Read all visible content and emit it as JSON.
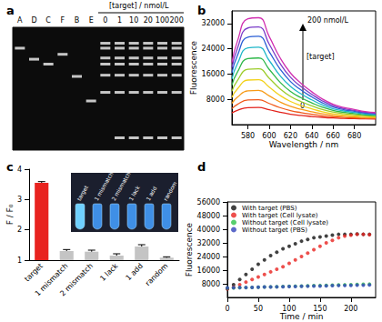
{
  "chart_data": [
    {
      "type": "gel",
      "title": "a",
      "categories": [
        "A",
        "D",
        "C",
        "F",
        "B",
        "E",
        "0",
        "1",
        "10",
        "20",
        "100",
        "200"
      ],
      "annotation": "[target] / nmol/L",
      "bands": [
        [
          17
        ],
        [
          26
        ],
        [
          30
        ],
        [
          22
        ],
        [
          40
        ],
        [
          60
        ],
        [
          13,
          17,
          25,
          30,
          39,
          53
        ],
        [
          13,
          17,
          25,
          30,
          39,
          53,
          90
        ],
        [
          13,
          17,
          25,
          30,
          39,
          53,
          90
        ],
        [
          13,
          17,
          25,
          30,
          39,
          53,
          90
        ],
        [
          13,
          17,
          25,
          30,
          39,
          53,
          90
        ],
        [
          13,
          17,
          25,
          30,
          39,
          53,
          90
        ]
      ],
      "ylim": [
        0,
        100
      ],
      "tick_labels": "x",
      "color": "#e8e8e8"
    },
    {
      "type": "line",
      "title": "b",
      "x": [
        565,
        570,
        580,
        590,
        600,
        610,
        620,
        630,
        640,
        650,
        660,
        670,
        680,
        690,
        700
      ],
      "series": [
        {
          "color": "#e3231c",
          "values": [
            3700,
            4500,
            5380,
            5420,
            4700,
            3900,
            3300,
            2900,
            2580,
            2300,
            2100,
            1980,
            1900,
            1820,
            1780
          ]
        },
        {
          "color": "#f05a1a",
          "values": [
            5080,
            6380,
            7810,
            7870,
            6700,
            5400,
            4430,
            3780,
            3260,
            2800,
            2480,
            2280,
            2150,
            2020,
            1960
          ]
        },
        {
          "color": "#f79a16",
          "values": [
            6730,
            8630,
            10720,
            10810,
            9100,
            7200,
            5780,
            4830,
            4070,
            3400,
            2930,
            2640,
            2450,
            2260,
            2170
          ]
        },
        {
          "color": "#f2d11a",
          "values": [
            8650,
            11250,
            14110,
            14240,
            11900,
            9300,
            7350,
            6050,
            5010,
            4100,
            3450,
            3060,
            2800,
            2540,
            2410
          ]
        },
        {
          "color": "#9ccc2a",
          "values": [
            10580,
            13880,
            17510,
            17670,
            14700,
            11400,
            8930,
            7280,
            5960,
            4800,
            3980,
            3480,
            3150,
            2820,
            2660
          ]
        },
        {
          "color": "#2fb84a",
          "values": [
            12500,
            16500,
            20900,
            21100,
            17500,
            13500,
            10500,
            8500,
            6900,
            5500,
            4500,
            3900,
            3500,
            3100,
            2900
          ]
        },
        {
          "color": "#1fb7c9",
          "values": [
            14430,
            19130,
            24300,
            24530,
            20300,
            15600,
            12080,
            9730,
            7850,
            6200,
            5030,
            4320,
            3850,
            3380,
            3150
          ]
        },
        {
          "color": "#2a5fd6",
          "values": [
            16350,
            21750,
            27690,
            27960,
            23100,
            17700,
            13650,
            10950,
            8790,
            6900,
            5550,
            4740,
            4200,
            3660,
            3390
          ]
        },
        {
          "color": "#7a3cc8",
          "values": [
            18000,
            24000,
            30600,
            30900,
            25500,
            19500,
            15000,
            12000,
            9600,
            7500,
            6000,
            5100,
            4500,
            3900,
            3600
          ]
        },
        {
          "color": "#d12fb0",
          "values": [
            19650,
            26250,
            33510,
            33840,
            27900,
            21300,
            16350,
            13050,
            10410,
            8100,
            6450,
            5460,
            4800,
            4140,
            3810
          ]
        }
      ],
      "xlim": [
        565,
        700
      ],
      "xticks": [
        580,
        600,
        620,
        640,
        660,
        680
      ],
      "ylim": [
        0,
        36000
      ],
      "yticks": [
        8000,
        16000,
        24000,
        32000
      ],
      "x_label": "Wavelength / nm",
      "y_label": "Fluorescence",
      "annotations": [
        "200 nmol/L",
        "[target]",
        "0"
      ]
    },
    {
      "type": "bar",
      "title": "c",
      "categories": [
        "target",
        "1 mismatch",
        "2 mismatch",
        "1 lack",
        "1 add",
        "random"
      ],
      "values": [
        3.55,
        1.3,
        1.28,
        1.15,
        1.45,
        1.08
      ],
      "errors": [
        0.04,
        0.05,
        0.05,
        0.06,
        0.06,
        0.03
      ],
      "colors": [
        "#e8231f",
        "#c4c4c4",
        "#c4c4c4",
        "#c4c4c4",
        "#c4c4c4",
        "#c4c4c4"
      ],
      "ylim": [
        1,
        4
      ],
      "yticks": [
        1,
        2,
        3,
        4
      ],
      "y_label": "F / F₀"
    },
    {
      "type": "scatter",
      "title": "d",
      "x": [
        0,
        10,
        20,
        30,
        40,
        50,
        60,
        70,
        80,
        90,
        100,
        110,
        120,
        130,
        140,
        150,
        160,
        170,
        180,
        190,
        200,
        210,
        220,
        230
      ],
      "series": [
        {
          "name": "With target (PBS)",
          "color": "#111111",
          "marker": "circle",
          "values": [
            5000,
            7500,
            10500,
            13500,
            16500,
            19500,
            22000,
            24500,
            26500,
            28500,
            30000,
            31500,
            33000,
            34000,
            35000,
            35500,
            36000,
            36500,
            37000,
            37000,
            37000,
            37200,
            37000,
            37000
          ]
        },
        {
          "name": "With target (Cell lysate)",
          "color": "#e8231f",
          "marker": "circle",
          "values": [
            5000,
            6000,
            7500,
            9000,
            10500,
            12000,
            13500,
            15000,
            16500,
            18000,
            20000,
            22000,
            24000,
            26000,
            28000,
            30000,
            32000,
            33500,
            35000,
            36000,
            36500,
            37000,
            37000,
            36800
          ]
        },
        {
          "name": "Without target (Cell lysate)",
          "color": "#2ec24a",
          "marker": "circle",
          "values": [
            5500,
            5600,
            5700,
            5800,
            5900,
            6000,
            6100,
            6200,
            6300,
            6400,
            6500,
            6600,
            6700,
            6800,
            6900,
            7000,
            7100,
            7200,
            7300,
            7400,
            7500,
            7600,
            7700,
            7800
          ]
        },
        {
          "name": "Without target (PBS)",
          "color": "#3344bb",
          "marker": "circle",
          "values": [
            5600,
            5700,
            5800,
            5800,
            5900,
            6000,
            6100,
            6100,
            6200,
            6300,
            6400,
            6400,
            6500,
            6600,
            6700,
            6700,
            6800,
            6900,
            7000,
            7000,
            7100,
            7200,
            7200,
            7300
          ]
        }
      ],
      "xlim": [
        0,
        240
      ],
      "xticks": [
        0,
        50,
        100,
        150,
        200
      ],
      "ylim": [
        0,
        56000
      ],
      "yticks": [
        8000,
        16000,
        24000,
        32000,
        40000,
        48000,
        56000
      ],
      "x_label": "Time / min",
      "y_label": "Fluorescence",
      "legend": "top-left"
    }
  ]
}
